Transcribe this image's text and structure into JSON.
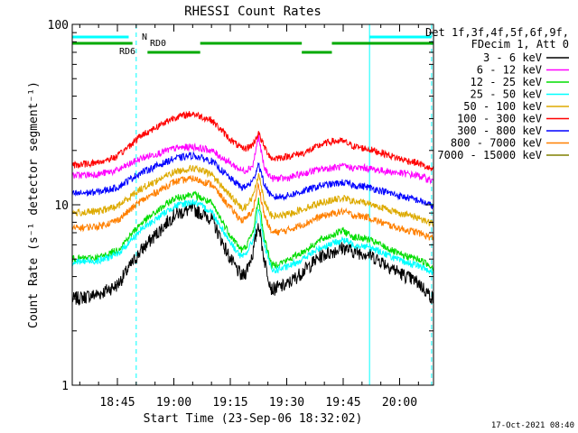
{
  "chart_data": {
    "type": "line",
    "title": "RHESSI Count Rates",
    "xlabel": "Start Time (23-Sep-06 18:32:02)",
    "ylabel": "Count Rate (s⁻¹ detector segment⁻¹)",
    "y_scale": "log",
    "ylim": [
      1,
      100
    ],
    "xlim_minutes": [
      18.0,
      114.0
    ],
    "x_ticks": [
      "18:45",
      "19:00",
      "19:15",
      "19:30",
      "19:45",
      "20:00"
    ],
    "x_tick_minutes": [
      30,
      45,
      60,
      75,
      90,
      105
    ],
    "y_ticks": [
      "1",
      "10",
      "100"
    ],
    "legend_header": [
      "Det 1f,3f,4f,5f,6f,9f,",
      "FDecim 1, Att 0"
    ],
    "timestamp": "17-Oct-2021 08:40",
    "grid": false,
    "legend_position": "right",
    "time_keys": [
      18,
      25,
      30,
      36,
      45,
      50,
      55,
      60,
      63,
      64,
      66,
      67.5,
      69,
      71,
      75,
      80,
      84,
      87,
      90,
      93,
      96,
      100,
      105,
      110,
      114
    ],
    "series": [
      {
        "name": "3 - 6 keV",
        "color": "#000000",
        "values": [
          3.0,
          3.2,
          3.6,
          5.5,
          8.8,
          9.5,
          8.4,
          5.0,
          4.0,
          4.2,
          5.4,
          8.0,
          5.0,
          3.4,
          3.6,
          4.4,
          5.2,
          5.5,
          5.8,
          5.5,
          5.4,
          4.9,
          4.2,
          3.7,
          3.0
        ]
      },
      {
        "name": "6 - 12 keV",
        "color": "#ff00ff",
        "values": [
          14.5,
          14.8,
          15.5,
          18.0,
          20.5,
          21.0,
          20.0,
          17.0,
          15.5,
          15.5,
          16.5,
          24.0,
          16.0,
          14.0,
          14.0,
          15.0,
          15.8,
          16.0,
          16.3,
          16.0,
          16.0,
          15.5,
          15.0,
          14.5,
          13.5
        ]
      },
      {
        "name": "12 - 25 keV",
        "color": "#00dd00",
        "values": [
          5.0,
          5.1,
          5.6,
          7.8,
          10.8,
          11.5,
          10.2,
          6.8,
          5.6,
          5.8,
          7.0,
          10.8,
          6.6,
          4.6,
          4.9,
          5.6,
          6.4,
          6.8,
          7.2,
          6.6,
          6.5,
          6.0,
          5.3,
          5.0,
          4.5
        ]
      },
      {
        "name": "25 - 50 keV",
        "color": "#00ffff",
        "values": [
          4.8,
          4.9,
          5.3,
          7.2,
          9.8,
          10.4,
          9.2,
          6.2,
          5.1,
          5.3,
          6.3,
          9.6,
          6.0,
          4.3,
          4.5,
          5.1,
          5.8,
          6.1,
          6.4,
          6.0,
          5.9,
          5.5,
          4.9,
          4.6,
          4.2
        ]
      },
      {
        "name": "50 - 100 keV",
        "color": "#ddaa00",
        "values": [
          9.0,
          9.2,
          9.8,
          12.2,
          15.2,
          16.0,
          14.8,
          11.2,
          9.6,
          9.8,
          11.0,
          15.0,
          10.6,
          8.6,
          8.8,
          9.6,
          10.3,
          10.6,
          10.9,
          10.4,
          10.3,
          9.7,
          9.0,
          8.5,
          7.8
        ]
      },
      {
        "name": "100 - 300 keV",
        "color": "#ff0000",
        "values": [
          16.5,
          17.2,
          18.5,
          24.0,
          30.5,
          32.0,
          29.5,
          23.0,
          20.5,
          20.5,
          21.5,
          25.0,
          21.0,
          18.0,
          18.5,
          19.5,
          21.5,
          22.5,
          22.5,
          21.0,
          20.5,
          19.5,
          18.0,
          17.0,
          15.5
        ]
      },
      {
        "name": "300 - 800 keV",
        "color": "#0000ff",
        "values": [
          11.5,
          11.8,
          12.5,
          15.0,
          18.0,
          18.8,
          17.5,
          14.0,
          12.5,
          12.5,
          13.5,
          17.0,
          13.0,
          11.0,
          11.2,
          12.0,
          12.8,
          13.0,
          13.3,
          12.8,
          12.6,
          12.0,
          11.2,
          10.6,
          9.8
        ]
      },
      {
        "name": "800 - 7000 keV",
        "color": "#ff8000",
        "values": [
          7.4,
          7.6,
          8.2,
          10.4,
          13.4,
          14.0,
          13.0,
          9.6,
          8.2,
          8.3,
          9.3,
          13.0,
          8.8,
          7.0,
          7.2,
          7.9,
          8.6,
          8.9,
          9.2,
          8.7,
          8.6,
          8.0,
          7.4,
          7.0,
          6.5
        ]
      },
      {
        "name": "7000 - 15000 keV",
        "color": "#808000",
        "values": []
      }
    ],
    "state_bars": [
      {
        "label": "N",
        "color": "#00ffff",
        "segments_minutes": [
          [
            18,
            33
          ],
          [
            97,
            113.5
          ]
        ]
      },
      {
        "label": "RD0",
        "color": "#00aa00",
        "segments_minutes": [
          [
            18,
            34
          ],
          [
            52,
            79
          ],
          [
            87,
            114
          ]
        ]
      },
      {
        "label": "RD6",
        "color": "#00aa00",
        "segments_minutes": [
          [
            38,
            52
          ],
          [
            79,
            87
          ]
        ]
      }
    ],
    "vertical_markers": [
      {
        "minute": 18,
        "style": "solid",
        "color": "#00ffff"
      },
      {
        "minute": 35,
        "style": "dashed",
        "color": "#00ffff"
      },
      {
        "minute": 97,
        "style": "solid",
        "color": "#00ffff"
      },
      {
        "minute": 113.5,
        "style": "dashed",
        "color": "#00ffff"
      }
    ]
  }
}
